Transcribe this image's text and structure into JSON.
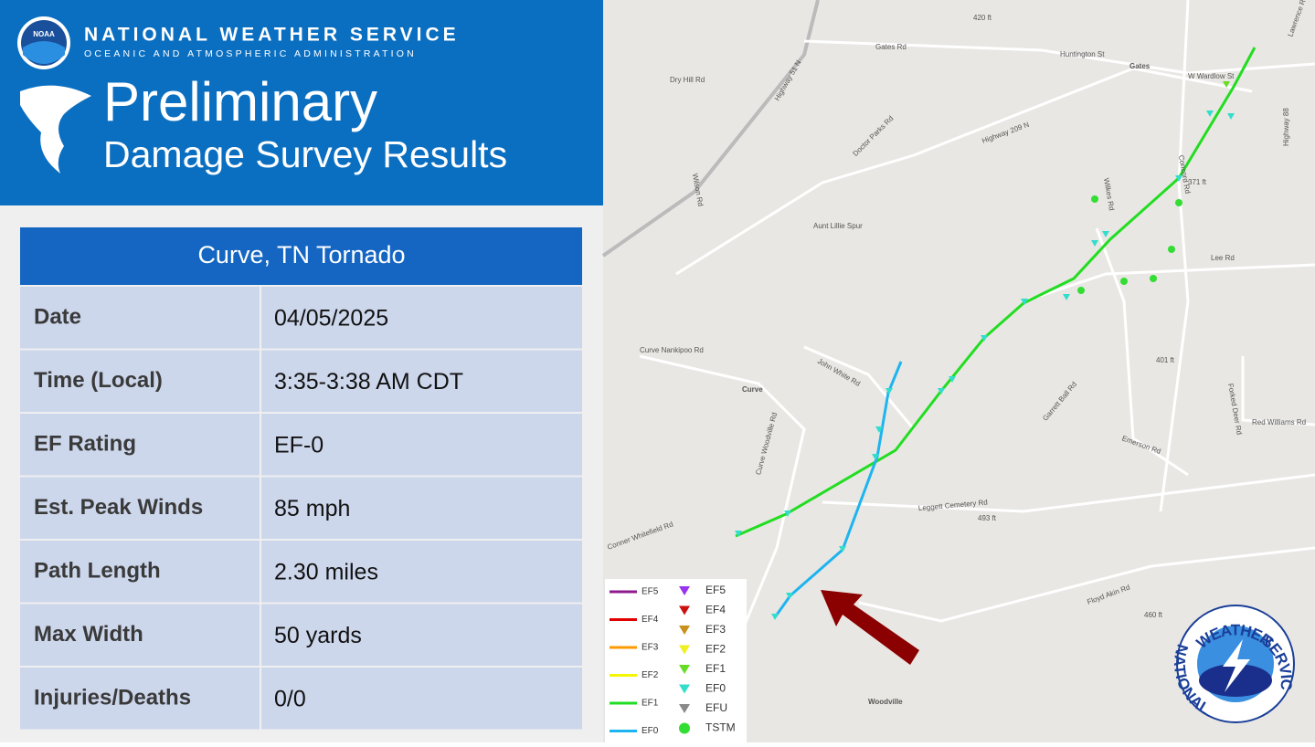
{
  "header": {
    "agency": "NATIONAL WEATHER SERVICE",
    "sub_agency": "OCEANIC AND ATMOSPHERIC ADMINISTRATION",
    "noaa_logo": "NOAA",
    "title": "Preliminary",
    "subtitle": "Damage Survey Results"
  },
  "table": {
    "title": "Curve, TN Tornado",
    "rows": [
      [
        "Date",
        "04/05/2025"
      ],
      [
        "Time (Local)",
        "3:35-3:38 AM CDT"
      ],
      [
        "EF Rating",
        "EF-0"
      ],
      [
        "Est. Peak Winds",
        "85 mph"
      ],
      [
        "Path Length",
        "2.30 miles"
      ],
      [
        "Max Width",
        "50 yards"
      ],
      [
        "Injuries/Deaths",
        "0/0"
      ]
    ]
  },
  "map": {
    "labels": [
      "Gates Rd",
      "Huntington St",
      "Gates",
      "W Wardlow St",
      "Dry Hill Rd",
      "Highway 51 N",
      "Doctor Parks Rd",
      "Highway 209 N",
      "Wilson Rd",
      "Aunt Lillie Spur",
      "Wilkes Rd",
      "Concord Rd",
      "Highway 88",
      "Lee Rd",
      "371 ft",
      "401 ft",
      "Curve Nankipoo Rd",
      "John White Rd",
      "Curve",
      "Garrett Ball Rd",
      "Forked Deer Rd",
      "Red Williams Rd",
      "Emerson Rd",
      "Curve Woodville Rd",
      "Leggett Cemetery Rd",
      "493 ft",
      "Conner Whitefield Rd",
      "Floyd Akin Rd",
      "460 ft",
      "Woodville",
      "420 ft",
      "Lawrence Rd"
    ],
    "legend": {
      "lines": [
        {
          "name": "EF5",
          "color": "#8e1a8e"
        },
        {
          "name": "EF4",
          "color": "#e00000"
        },
        {
          "name": "EF3",
          "color": "#ff9900"
        },
        {
          "name": "EF2",
          "color": "#f5f500"
        },
        {
          "name": "EF1",
          "color": "#22dd22"
        },
        {
          "name": "EF0",
          "color": "#1eb4f0"
        }
      ],
      "points": [
        {
          "name": "EF5",
          "color": "#9933ee"
        },
        {
          "name": "EF4",
          "color": "#cc1111"
        },
        {
          "name": "EF3",
          "color": "#c8901c"
        },
        {
          "name": "EF2",
          "color": "#f0f020"
        },
        {
          "name": "EF1",
          "color": "#66dd22"
        },
        {
          "name": "EF0",
          "color": "#33ddcc"
        },
        {
          "name": "EFU",
          "color": "#8a8a8a"
        },
        {
          "name": "TSTM",
          "color": "#33dd33"
        }
      ]
    },
    "logo": [
      "NATIONAL",
      "WEATHER",
      "SERVICE"
    ]
  }
}
